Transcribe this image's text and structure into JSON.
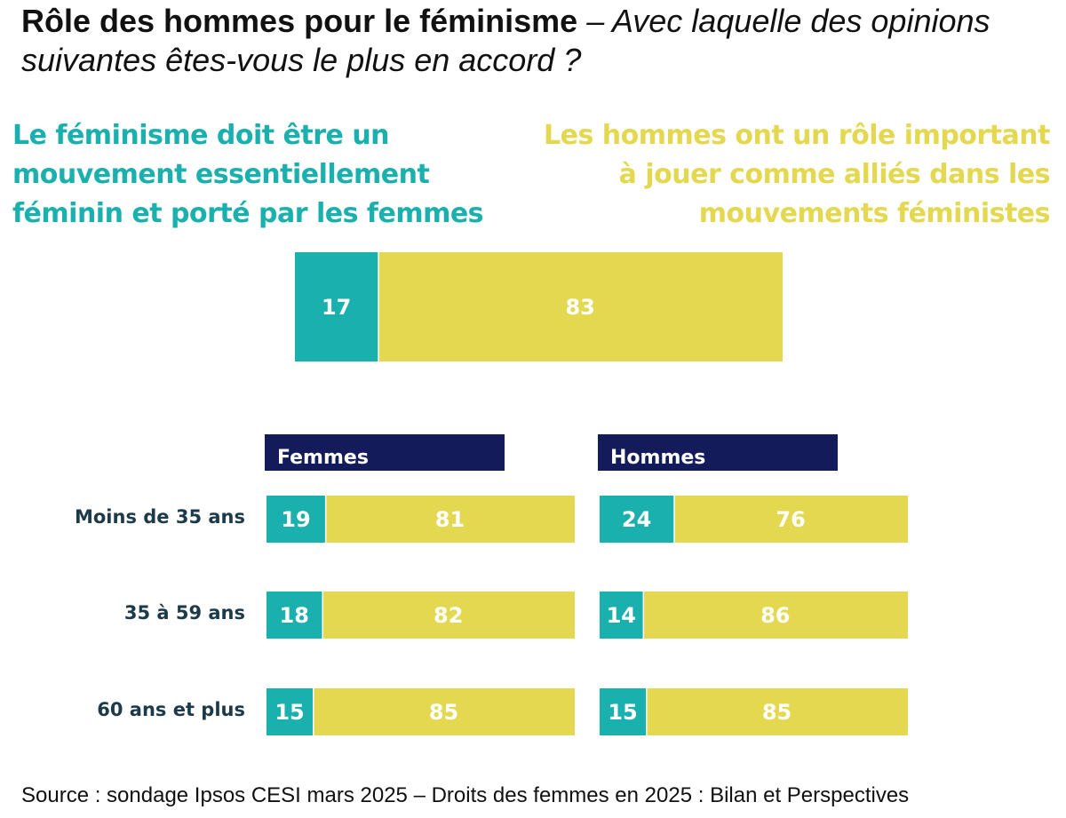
{
  "title": {
    "bold": "Rôle des hommes pour le féminisme",
    "italic": "– Avec laquelle des opinions suivantes êtes-vous le plus en accord ?"
  },
  "legend": {
    "left": "Le féminisme doit être un\nmouvement essentiellement\nféminin et porté par les femmes",
    "right": "Les hommes ont un rôle important\nà jouer comme alliés dans les\nmouvements féministes"
  },
  "colors": {
    "teal": "#1ab0ad",
    "yellow": "#e3d84f",
    "navy": "#141b5a",
    "label": "#1c3a4a"
  },
  "chart_data": {
    "type": "bar",
    "stacked": true,
    "orientation": "horizontal",
    "total": {
      "values": [
        17,
        83
      ]
    },
    "groups": [
      {
        "name": "Femmes",
        "rows": [
          {
            "category": "Moins de 35 ans",
            "values": [
              19,
              81
            ]
          },
          {
            "category": "35 à 59 ans",
            "values": [
              18,
              82
            ]
          },
          {
            "category": "60 ans et plus",
            "values": [
              15,
              85
            ]
          }
        ]
      },
      {
        "name": "Hommes",
        "rows": [
          {
            "category": "Moins de 35 ans",
            "values": [
              24,
              76
            ]
          },
          {
            "category": "35 à 59 ans",
            "values": [
              14,
              86
            ]
          },
          {
            "category": "60 ans et plus",
            "values": [
              15,
              85
            ]
          }
        ]
      }
    ]
  },
  "source": "Source : sondage Ipsos CESI mars 2025 – Droits des femmes en 2025 : Bilan et Perspectives"
}
